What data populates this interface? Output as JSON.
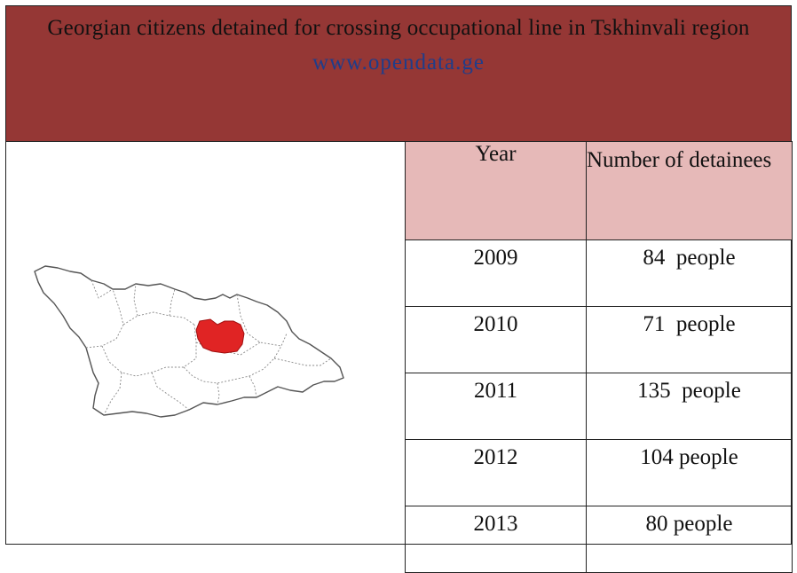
{
  "header": {
    "title": "Georgian citizens detained for crossing occupational line in Tskhinvali region",
    "url": "www.opendata.ge"
  },
  "map": {
    "highlight_color": "#e02424",
    "outline_color": "#555555"
  },
  "table": {
    "columns": [
      "Year",
      "Number of detainees"
    ],
    "rows": [
      {
        "year": "2009",
        "count": "84  people"
      },
      {
        "year": "2010",
        "count": "71  people"
      },
      {
        "year": "2011",
        "count": "135  people"
      },
      {
        "year": "2012",
        "count": "104 people"
      },
      {
        "year": "2013",
        "count": "80 people"
      }
    ]
  },
  "colors": {
    "header_bg": "#953735",
    "table_header_bg": "#e6b9b8",
    "url_color": "#1f3d8a"
  }
}
